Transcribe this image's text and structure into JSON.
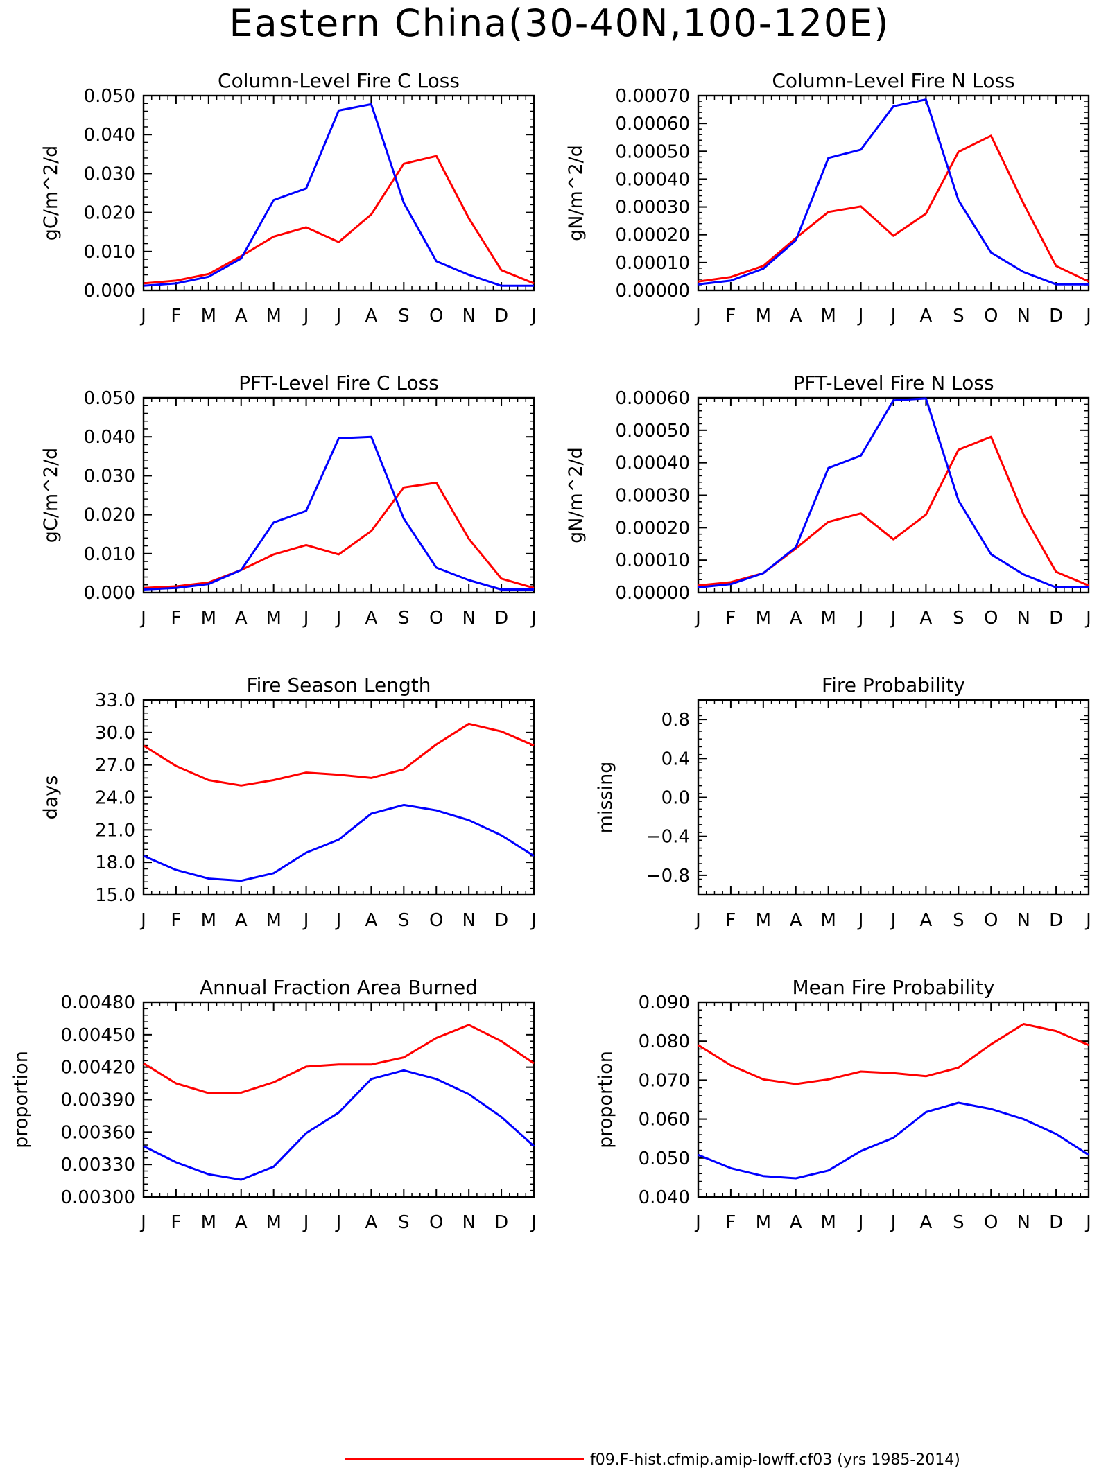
{
  "figure": {
    "title": "Eastern China(30-40N,100-120E)"
  },
  "legend": {
    "items": [
      {
        "label": "f09.F-hist.cfmip.amip-lowff.cf03 (yrs 1985-2014)",
        "color": "#ff0000"
      }
    ]
  },
  "colors": {
    "red": "#ff0000",
    "blue": "#0000ff"
  },
  "month_labels": [
    "J",
    "F",
    "M",
    "A",
    "M",
    "J",
    "J",
    "A",
    "S",
    "O",
    "N",
    "D",
    "J"
  ],
  "chart_data": [
    {
      "type": "line",
      "title": "Column-Level Fire C Loss",
      "ylabel": "gC/m^2/d",
      "ylim": [
        0,
        0.05
      ],
      "yticks": [
        "0.000",
        "0.010",
        "0.020",
        "0.030",
        "0.040",
        "0.050"
      ],
      "categories": [
        "J",
        "F",
        "M",
        "A",
        "M",
        "J",
        "J",
        "A",
        "S",
        "O",
        "N",
        "D",
        "J"
      ],
      "series": [
        {
          "color": "#ff0000",
          "values": [
            0.0018,
            0.0025,
            0.0042,
            0.0088,
            0.0138,
            0.0162,
            0.0124,
            0.0195,
            0.0325,
            0.0345,
            0.0185,
            0.0052,
            0.0018
          ]
        },
        {
          "color": "#0000ff",
          "values": [
            0.0012,
            0.0018,
            0.0035,
            0.0082,
            0.0232,
            0.0262,
            0.0462,
            0.0478,
            0.0225,
            0.0075,
            0.004,
            0.0012,
            0.0012
          ]
        }
      ]
    },
    {
      "type": "line",
      "title": "Column-Level Fire N Loss",
      "ylabel": "gN/m^2/d",
      "ylim": [
        0,
        0.0007
      ],
      "yticks": [
        "0.00000",
        "0.00010",
        "0.00020",
        "0.00030",
        "0.00040",
        "0.00050",
        "0.00060",
        "0.00070"
      ],
      "categories": [
        "J",
        "F",
        "M",
        "A",
        "M",
        "J",
        "J",
        "A",
        "S",
        "O",
        "N",
        "D",
        "J"
      ],
      "series": [
        {
          "color": "#ff0000",
          "values": [
            3.2e-05,
            4.8e-05,
            8.8e-05,
            0.000188,
            0.000282,
            0.000302,
            0.000196,
            0.000276,
            0.000498,
            0.000556,
            0.000312,
            8.8e-05,
            3.2e-05
          ]
        },
        {
          "color": "#0000ff",
          "values": [
            2.2e-05,
            3.5e-05,
            7.8e-05,
            0.00018,
            0.000476,
            0.000506,
            0.000662,
            0.000686,
            0.000324,
            0.000136,
            6.6e-05,
            2.2e-05,
            2.2e-05
          ]
        }
      ]
    },
    {
      "type": "line",
      "title": "PFT-Level Fire C Loss",
      "ylabel": "gC/m^2/d",
      "ylim": [
        0,
        0.05
      ],
      "yticks": [
        "0.000",
        "0.010",
        "0.020",
        "0.030",
        "0.040",
        "0.050"
      ],
      "categories": [
        "J",
        "F",
        "M",
        "A",
        "M",
        "J",
        "J",
        "A",
        "S",
        "O",
        "N",
        "D",
        "J"
      ],
      "series": [
        {
          "color": "#ff0000",
          "values": [
            0.0012,
            0.0016,
            0.0026,
            0.0058,
            0.0098,
            0.0122,
            0.0098,
            0.0158,
            0.027,
            0.0282,
            0.0138,
            0.0036,
            0.0012
          ]
        },
        {
          "color": "#0000ff",
          "values": [
            0.0008,
            0.0012,
            0.0022,
            0.0058,
            0.018,
            0.021,
            0.0396,
            0.04,
            0.019,
            0.0064,
            0.0032,
            0.0008,
            0.0008
          ]
        }
      ]
    },
    {
      "type": "line",
      "title": "PFT-Level Fire N Loss",
      "ylabel": "gN/m^2/d",
      "ylim": [
        0,
        0.0006
      ],
      "yticks": [
        "0.00000",
        "0.00010",
        "0.00020",
        "0.00030",
        "0.00040",
        "0.00050",
        "0.00060"
      ],
      "categories": [
        "J",
        "F",
        "M",
        "A",
        "M",
        "J",
        "J",
        "A",
        "S",
        "O",
        "N",
        "D",
        "J"
      ],
      "series": [
        {
          "color": "#ff0000",
          "values": [
            2.2e-05,
            3.2e-05,
            6e-05,
            0.000136,
            0.000218,
            0.000244,
            0.000164,
            0.00024,
            0.00044,
            0.00048,
            0.00024,
            6.4e-05,
            2.2e-05
          ]
        },
        {
          "color": "#0000ff",
          "values": [
            1.6e-05,
            2.6e-05,
            6e-05,
            0.00014,
            0.000384,
            0.000422,
            0.000592,
            0.000598,
            0.000284,
            0.000118,
            5.6e-05,
            1.6e-05,
            1.6e-05
          ]
        }
      ]
    },
    {
      "type": "line",
      "title": "Fire Season Length",
      "ylabel": "days",
      "ylim": [
        15,
        33
      ],
      "yticks": [
        "15.0",
        "18.0",
        "21.0",
        "24.0",
        "27.0",
        "30.0",
        "33.0"
      ],
      "categories": [
        "J",
        "F",
        "M",
        "A",
        "M",
        "J",
        "J",
        "A",
        "S",
        "O",
        "N",
        "D",
        "J"
      ],
      "series": [
        {
          "color": "#ff0000",
          "values": [
            28.8,
            26.9,
            25.6,
            25.1,
            25.6,
            26.3,
            26.1,
            25.8,
            26.6,
            28.9,
            30.8,
            30.1,
            28.8
          ]
        },
        {
          "color": "#0000ff",
          "values": [
            18.6,
            17.3,
            16.5,
            16.3,
            17.0,
            18.9,
            20.1,
            22.5,
            23.3,
            22.8,
            21.9,
            20.5,
            18.6
          ]
        }
      ]
    },
    {
      "type": "line",
      "title": "Fire Probability",
      "ylabel": "missing",
      "ylim": [
        -1,
        1
      ],
      "yticks": [
        "-0.8",
        "-0.4",
        "0.0",
        "0.4",
        "0.8"
      ],
      "categories": [
        "J",
        "F",
        "M",
        "A",
        "M",
        "J",
        "J",
        "A",
        "S",
        "O",
        "N",
        "D",
        "J"
      ],
      "series": []
    },
    {
      "type": "line",
      "title": "Annual Fraction Area Burned",
      "ylabel": "proportion",
      "ylim": [
        0.003,
        0.0048
      ],
      "yticks": [
        "0.00300",
        "0.00330",
        "0.00360",
        "0.00390",
        "0.00420",
        "0.00450",
        "0.00480"
      ],
      "categories": [
        "J",
        "F",
        "M",
        "A",
        "M",
        "J",
        "J",
        "A",
        "S",
        "O",
        "N",
        "D",
        "J"
      ],
      "series": [
        {
          "color": "#ff0000",
          "values": [
            0.004235,
            0.00405,
            0.00396,
            0.003965,
            0.00406,
            0.004205,
            0.004225,
            0.004225,
            0.00429,
            0.00447,
            0.00459,
            0.00444,
            0.004235
          ]
        },
        {
          "color": "#0000ff",
          "values": [
            0.00347,
            0.00332,
            0.00321,
            0.00316,
            0.00328,
            0.00359,
            0.00378,
            0.00409,
            0.00417,
            0.00409,
            0.00395,
            0.00374,
            0.00347
          ]
        }
      ]
    },
    {
      "type": "line",
      "title": "Mean Fire Probability",
      "ylabel": "proportion",
      "ylim": [
        0.04,
        0.09
      ],
      "yticks": [
        "0.040",
        "0.050",
        "0.060",
        "0.070",
        "0.080",
        "0.090"
      ],
      "categories": [
        "J",
        "F",
        "M",
        "A",
        "M",
        "J",
        "J",
        "A",
        "S",
        "O",
        "N",
        "D",
        "J"
      ],
      "series": [
        {
          "color": "#ff0000",
          "values": [
            0.079,
            0.0738,
            0.0702,
            0.069,
            0.0702,
            0.0722,
            0.0718,
            0.071,
            0.0732,
            0.0792,
            0.0844,
            0.0826,
            0.079
          ]
        },
        {
          "color": "#0000ff",
          "values": [
            0.0508,
            0.0474,
            0.0454,
            0.0448,
            0.0468,
            0.0518,
            0.0552,
            0.0618,
            0.0642,
            0.0626,
            0.06,
            0.0562,
            0.0508
          ]
        }
      ]
    }
  ]
}
